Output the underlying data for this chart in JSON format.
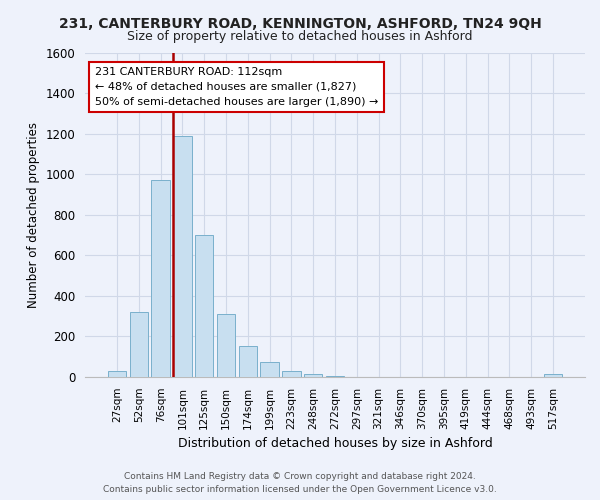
{
  "title": "231, CANTERBURY ROAD, KENNINGTON, ASHFORD, TN24 9QH",
  "subtitle": "Size of property relative to detached houses in Ashford",
  "xlabel": "Distribution of detached houses by size in Ashford",
  "ylabel": "Number of detached properties",
  "bar_labels": [
    "27sqm",
    "52sqm",
    "76sqm",
    "101sqm",
    "125sqm",
    "150sqm",
    "174sqm",
    "199sqm",
    "223sqm",
    "248sqm",
    "272sqm",
    "297sqm",
    "321sqm",
    "346sqm",
    "370sqm",
    "395sqm",
    "419sqm",
    "444sqm",
    "468sqm",
    "493sqm",
    "517sqm"
  ],
  "bar_values": [
    30,
    320,
    970,
    1190,
    700,
    310,
    150,
    75,
    30,
    15,
    5,
    0,
    0,
    0,
    0,
    0,
    0,
    0,
    0,
    0,
    15
  ],
  "bar_color": "#c8dff0",
  "bar_edge_color": "#7ab0cc",
  "vline_x_index": 3,
  "vline_color": "#aa0000",
  "ylim": [
    0,
    1600
  ],
  "yticks": [
    0,
    200,
    400,
    600,
    800,
    1000,
    1200,
    1400,
    1600
  ],
  "annotation_title": "231 CANTERBURY ROAD: 112sqm",
  "annotation_line1": "← 48% of detached houses are smaller (1,827)",
  "annotation_line2": "50% of semi-detached houses are larger (1,890) →",
  "annotation_box_color": "#ffffff",
  "annotation_box_edge": "#cc0000",
  "footer_line1": "Contains HM Land Registry data © Crown copyright and database right 2024.",
  "footer_line2": "Contains public sector information licensed under the Open Government Licence v3.0.",
  "bg_color": "#eef2fb",
  "grid_color": "#d0d8e8"
}
